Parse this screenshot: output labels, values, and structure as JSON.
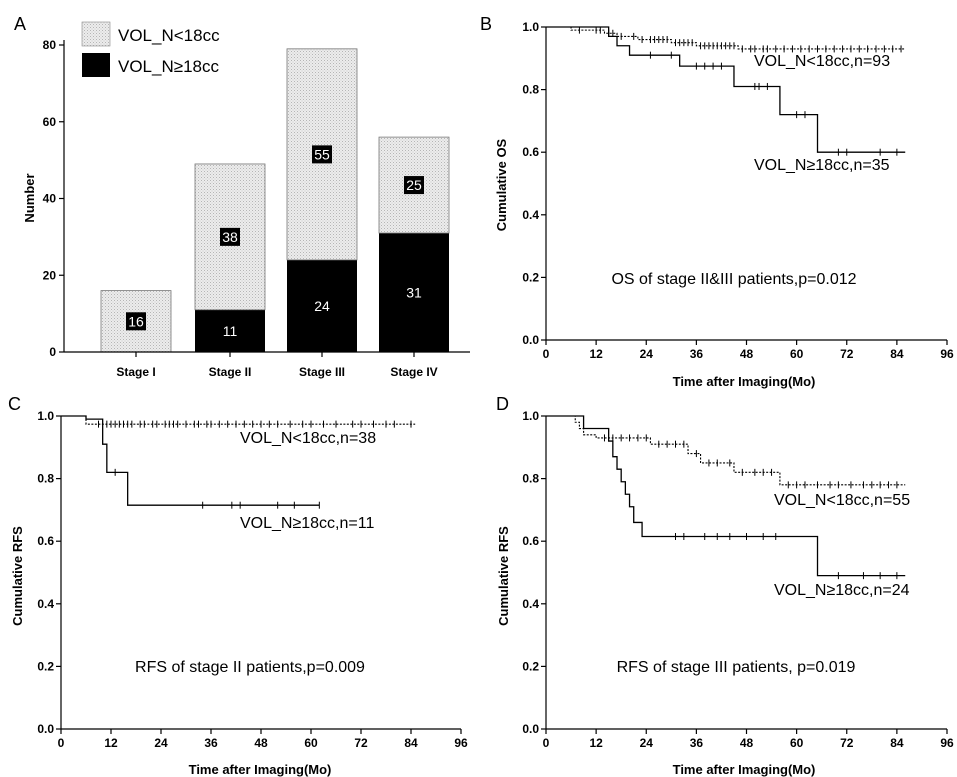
{
  "chart_data": [
    {
      "panel": "A",
      "type": "bar",
      "stacked": true,
      "categories": [
        "Stage I",
        "Stage II",
        "Stage III",
        "Stage IV"
      ],
      "series": [
        {
          "name": "VOL_N≥18cc",
          "values": [
            0,
            11,
            24,
            31
          ],
          "color": "#000000",
          "labels": [
            "",
            "11",
            "24",
            "31"
          ]
        },
        {
          "name": "VOL_N<18cc",
          "values": [
            16,
            38,
            55,
            25
          ],
          "color": "#e6e6e6",
          "labels": [
            "16",
            "38",
            "55",
            "25"
          ]
        }
      ],
      "ylabel": "Number",
      "ylim": [
        0,
        80
      ],
      "yticks": [
        "0",
        "20",
        "40",
        "60",
        "80"
      ],
      "legend": [
        "VOL_N<18cc",
        "VOL_N≥18cc"
      ],
      "legend_position": "top-left"
    },
    {
      "panel": "B",
      "type": "line",
      "subtype": "kaplan-meier",
      "xlabel": "Time after Imaging(Mo)",
      "ylabel": "Cumulative OS",
      "xlim": [
        0,
        96
      ],
      "ylim": [
        0,
        1.0
      ],
      "xticks": [
        "0",
        "12",
        "24",
        "36",
        "48",
        "60",
        "72",
        "84",
        "96"
      ],
      "yticks": [
        "0.0",
        "0.2",
        "0.4",
        "0.6",
        "0.8",
        "1.0"
      ],
      "annotation": "OS of stage II&III patients,p=0.012",
      "series": [
        {
          "name": "VOL_N<18cc,n=93",
          "style": "dotted",
          "steps": [
            [
              0,
              1.0
            ],
            [
              6,
              0.99
            ],
            [
              14,
              0.98
            ],
            [
              17,
              0.97
            ],
            [
              22,
              0.96
            ],
            [
              30,
              0.95
            ],
            [
              36,
              0.94
            ],
            [
              46,
              0.93
            ],
            [
              86,
              0.93
            ]
          ],
          "censor": [
            8,
            12,
            13,
            15,
            16,
            18,
            21,
            23,
            25,
            26,
            27,
            28,
            29,
            31,
            32,
            33,
            34,
            35,
            37,
            38,
            39,
            40,
            41,
            42,
            43,
            44,
            45,
            47,
            49,
            50,
            52,
            53,
            55,
            57,
            59,
            61,
            63,
            65,
            67,
            69,
            71,
            73,
            75,
            77,
            79,
            81,
            83,
            85
          ]
        },
        {
          "name": "VOL_N≥18cc,n=35",
          "style": "solid",
          "steps": [
            [
              0,
              1.0
            ],
            [
              15,
              0.97
            ],
            [
              17,
              0.94
            ],
            [
              20,
              0.91
            ],
            [
              32,
              0.875
            ],
            [
              45,
              0.81
            ],
            [
              56,
              0.72
            ],
            [
              65,
              0.6
            ],
            [
              86,
              0.6
            ]
          ],
          "censor": [
            25,
            30,
            36,
            38,
            40,
            42,
            50,
            51,
            53,
            60,
            62,
            70,
            72,
            80,
            84
          ]
        }
      ]
    },
    {
      "panel": "C",
      "type": "line",
      "subtype": "kaplan-meier",
      "xlabel": "Time after Imaging(Mo)",
      "ylabel": "Cumulative RFS",
      "xlim": [
        0,
        96
      ],
      "ylim": [
        0,
        1.0
      ],
      "xticks": [
        "0",
        "12",
        "24",
        "36",
        "48",
        "60",
        "72",
        "84",
        "96"
      ],
      "yticks": [
        "0.0",
        "0.2",
        "0.4",
        "0.6",
        "0.8",
        "1.0"
      ],
      "annotation": "RFS of stage II patients,p=0.009",
      "series": [
        {
          "name": "VOL_N<18cc,n=38",
          "style": "dotted",
          "steps": [
            [
              0,
              1.0
            ],
            [
              6,
              0.974
            ],
            [
              85,
              0.974
            ]
          ],
          "censor": [
            9,
            11,
            12,
            13,
            14,
            15,
            16,
            17,
            19,
            20,
            22,
            23,
            25,
            26,
            27,
            28,
            30,
            32,
            33,
            35,
            36,
            38,
            40,
            42,
            44,
            46,
            48,
            50,
            52,
            55,
            58,
            60,
            63,
            66,
            70,
            72,
            75,
            78,
            80,
            84
          ]
        },
        {
          "name": "VOL_N≥18cc,n=11",
          "style": "solid",
          "steps": [
            [
              0,
              1.0
            ],
            [
              6,
              0.99
            ],
            [
              10,
              0.91
            ],
            [
              11,
              0.82
            ],
            [
              16,
              0.715
            ],
            [
              62,
              0.715
            ]
          ],
          "censor": [
            13,
            34,
            41,
            43,
            52,
            56,
            62
          ]
        }
      ]
    },
    {
      "panel": "D",
      "type": "line",
      "subtype": "kaplan-meier",
      "xlabel": "Time after Imaging(Mo)",
      "ylabel": "Cumulative RFS",
      "xlim": [
        0,
        96
      ],
      "ylim": [
        0,
        1.0
      ],
      "xticks": [
        "0",
        "12",
        "24",
        "36",
        "48",
        "60",
        "72",
        "84",
        "96"
      ],
      "yticks": [
        "0.0",
        "0.2",
        "0.4",
        "0.6",
        "0.8",
        "1.0"
      ],
      "annotation": "RFS of stage III patients, p=0.019",
      "series": [
        {
          "name": "VOL_N<18cc,n=55",
          "style": "dotted",
          "steps": [
            [
              0,
              1.0
            ],
            [
              7,
              0.98
            ],
            [
              8,
              0.96
            ],
            [
              9,
              0.94
            ],
            [
              12,
              0.93
            ],
            [
              25,
              0.91
            ],
            [
              34,
              0.88
            ],
            [
              37,
              0.85
            ],
            [
              45,
              0.82
            ],
            [
              56,
              0.78
            ],
            [
              86,
              0.78
            ]
          ],
          "censor": [
            14,
            16,
            18,
            20,
            22,
            24,
            27,
            29,
            31,
            33,
            36,
            39,
            41,
            44,
            47,
            50,
            52,
            54,
            58,
            60,
            62,
            65,
            68,
            70,
            73,
            76,
            78,
            80,
            82,
            84
          ]
        },
        {
          "name": "VOL_N≥18cc,n=24",
          "style": "solid",
          "steps": [
            [
              0,
              1.0
            ],
            [
              9,
              0.96
            ],
            [
              15,
              0.92
            ],
            [
              16,
              0.87
            ],
            [
              17,
              0.83
            ],
            [
              18,
              0.79
            ],
            [
              19,
              0.75
            ],
            [
              20,
              0.71
            ],
            [
              21,
              0.66
            ],
            [
              23,
              0.615
            ],
            [
              65,
              0.615
            ],
            [
              65,
              0.49
            ],
            [
              86,
              0.49
            ]
          ],
          "censor": [
            31,
            33,
            38,
            41,
            44,
            48,
            52,
            55,
            70,
            76,
            80,
            84
          ]
        }
      ]
    }
  ]
}
